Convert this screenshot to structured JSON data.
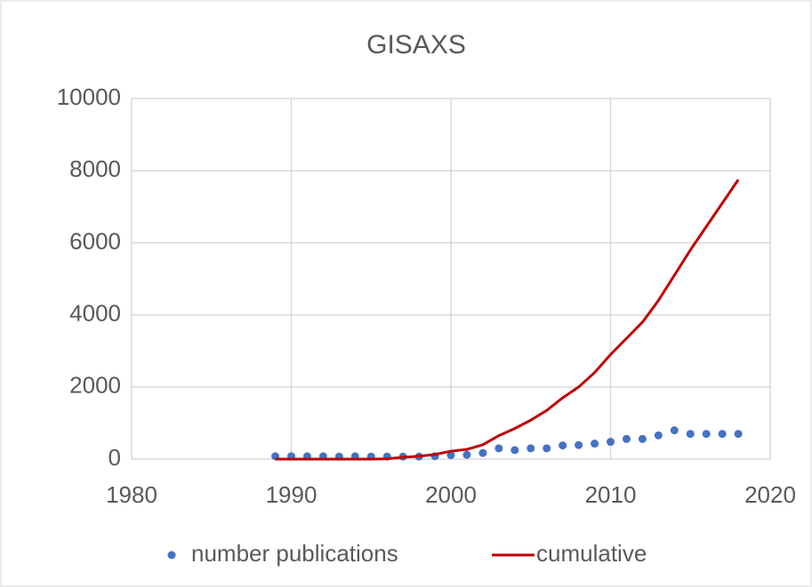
{
  "chart_data": {
    "type": "line",
    "title": "GISAXS",
    "x": [
      1989,
      1990,
      1991,
      1992,
      1993,
      1994,
      1995,
      1996,
      1997,
      1998,
      1999,
      2000,
      2001,
      2002,
      2003,
      2004,
      2005,
      2006,
      2007,
      2008,
      2009,
      2010,
      2011,
      2012,
      2013,
      2014,
      2015,
      2016,
      2017,
      2018
    ],
    "series": [
      {
        "name": "number publications",
        "color": "#4472c4",
        "mode": "markers",
        "values": [
          80,
          80,
          80,
          80,
          70,
          80,
          70,
          70,
          70,
          70,
          80,
          110,
          120,
          170,
          300,
          250,
          300,
          300,
          380,
          390,
          430,
          480,
          560,
          560,
          660,
          800,
          700,
          700,
          700,
          700
        ]
      },
      {
        "name": "cumulative",
        "color": "#c00000",
        "mode": "line",
        "values": [
          0,
          0,
          0,
          0,
          0,
          0,
          0,
          10,
          50,
          80,
          130,
          220,
          270,
          400,
          650,
          850,
          1080,
          1350,
          1700,
          2000,
          2400,
          2900,
          3350,
          3800,
          4400,
          5100,
          5800,
          6450,
          7100,
          7750
        ]
      }
    ],
    "xlim": [
      1980,
      2020
    ],
    "xticks": [
      1980,
      1990,
      2000,
      2010,
      2020
    ],
    "ylim": [
      0,
      10000
    ],
    "yticks": [
      0,
      2000,
      4000,
      6000,
      8000,
      10000
    ],
    "grid": true,
    "legend": "bottom"
  }
}
